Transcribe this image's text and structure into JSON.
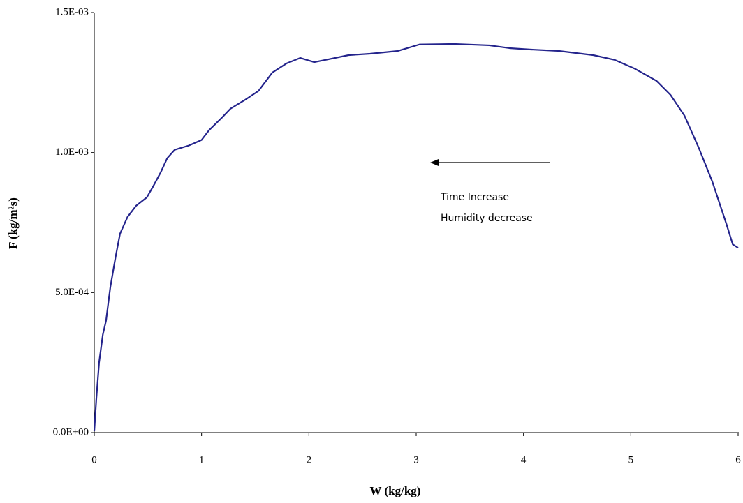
{
  "chart_data": {
    "type": "line",
    "xlabel": "W (kg/kg)",
    "ylabel": "F (kg/m²s)",
    "annotations": [
      "Time Increase",
      "Humidity decrease"
    ],
    "x": [
      0,
      0.02,
      0.045,
      0.08,
      0.11,
      0.15,
      0.2,
      0.24,
      0.31,
      0.39,
      0.49,
      0.55,
      0.62,
      0.68,
      0.75,
      0.88,
      1.0,
      1.07,
      1.19,
      1.27,
      1.4,
      1.53,
      1.66,
      1.79,
      1.92,
      2.05,
      2.18,
      2.37,
      2.57,
      2.83,
      3.03,
      3.35,
      3.68,
      3.87,
      4.07,
      4.33,
      4.65,
      4.85,
      5.04,
      5.24,
      5.37,
      5.5,
      5.63,
      5.76,
      5.89,
      5.95,
      6.0
    ],
    "series": [
      {
        "name": "F",
        "color": "#24248c",
        "values": [
          5e-06,
          0.000124,
          0.00025,
          0.00035,
          0.0004,
          0.00052,
          0.00063,
          0.00071,
          0.00077,
          0.00081,
          0.00084,
          0.00088,
          0.00093,
          0.00098,
          0.00101,
          0.001025,
          0.001045,
          0.00108,
          0.001125,
          0.001157,
          0.001187,
          0.00122,
          0.001286,
          0.001318,
          0.001338,
          0.001323,
          0.001333,
          0.001348,
          0.001353,
          0.001363,
          0.001386,
          0.001388,
          0.001383,
          0.001373,
          0.001368,
          0.001363,
          0.001348,
          0.001331,
          0.001299,
          0.001256,
          0.001206,
          0.001132,
          0.00102,
          0.000896,
          0.000746,
          0.000672,
          0.00066
        ]
      }
    ],
    "xlim": [
      0,
      6
    ],
    "xticks": [
      0,
      1,
      2,
      3,
      4,
      5,
      6
    ],
    "ylim": [
      0,
      0.0015
    ],
    "yticks": [
      {
        "value": 0,
        "label": "0.0E+00"
      },
      {
        "value": 0.0005,
        "label": "5.0E-04"
      },
      {
        "value": 0.001,
        "label": "1.0E-03"
      },
      {
        "value": 0.0015,
        "label": "1.5E-03"
      }
    ],
    "grid": false
  }
}
